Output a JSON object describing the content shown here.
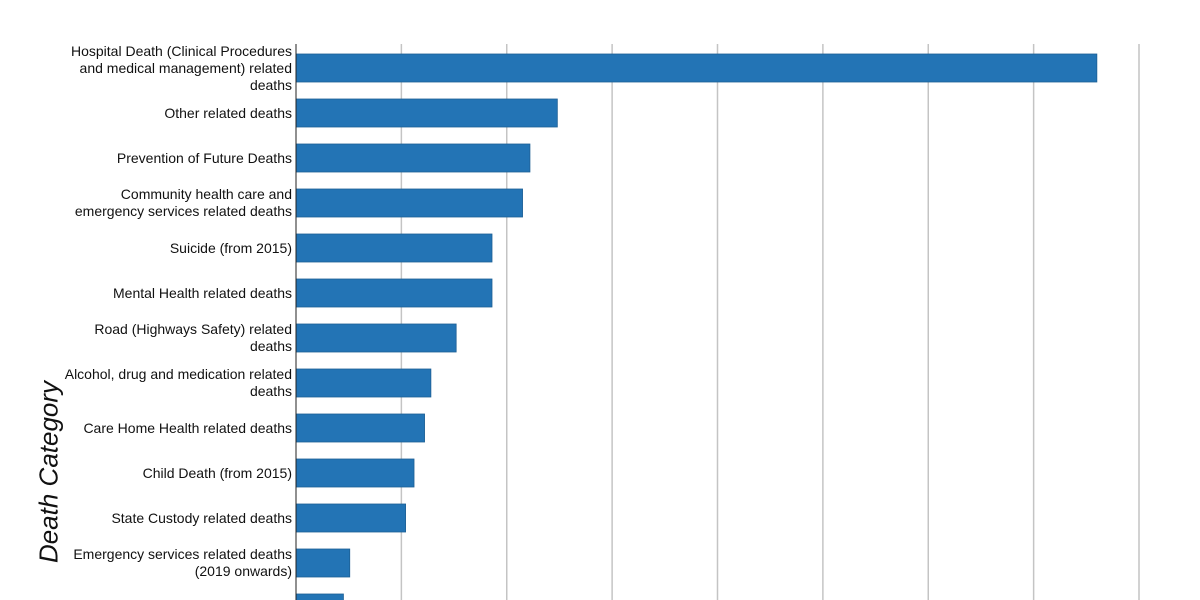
{
  "chart_data": {
    "type": "bar",
    "orientation": "horizontal",
    "ylabel": "Death Category",
    "xlabel": "",
    "xlim": [
      0,
      800
    ],
    "grid": true,
    "bar_color": "#2374b5",
    "categories": [
      "Hospital Death (Clinical Procedures and medical management) related deaths",
      "Other related deaths",
      "Prevention of Future Deaths",
      "Community health care and emergency services related deaths",
      "Suicide (from 2015)",
      "Mental Health related deaths",
      "Road (Highways Safety) related deaths",
      "Alcohol, drug and medication related deaths",
      "Care Home Health related deaths",
      "Child Death (from 2015)",
      "State Custody related deaths",
      "Emergency services related deaths (2019 onwards)",
      ""
    ],
    "values": [
      760,
      248,
      222,
      215,
      186,
      186,
      152,
      128,
      122,
      112,
      104,
      51,
      45
    ]
  }
}
